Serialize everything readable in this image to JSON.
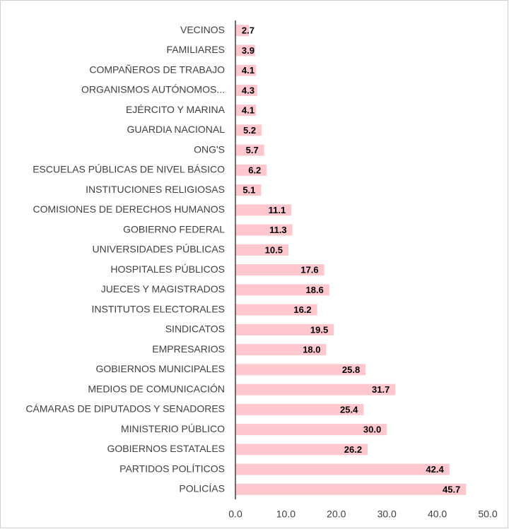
{
  "chart_data": {
    "type": "bar",
    "orientation": "horizontal",
    "categories": [
      "VECINOS",
      "FAMILIARES",
      "COMPAÑEROS DE TRABAJO",
      "ORGANISMOS AUTÓNOMOS...",
      "EJÉRCITO Y MARINA",
      "GUARDIA NACIONAL",
      "ONG'S",
      "ESCUELAS PÚBLICAS DE NIVEL BÁSICO",
      "INSTITUCIONES RELIGIOSAS",
      "COMISIONES DE DERECHOS HUMANOS",
      "GOBIERNO FEDERAL",
      "UNIVERSIDADES PÚBLICAS",
      "HOSPITALES PÚBLICOS",
      "JUECES Y MAGISTRADOS",
      "INSTITUTOS ELECTORALES",
      "SINDICATOS",
      "EMPRESARIOS",
      "GOBIERNOS MUNICIPALES",
      "MEDIOS DE COMUNICACIÓN",
      "CÁMARAS DE DIPUTADOS Y SENADORES",
      "MINISTERIO PÚBLICO",
      "GOBIERNOS ESTATALES",
      "PARTIDOS POLÍTICOS",
      "POLICÍAS"
    ],
    "values": [
      2.7,
      3.9,
      4.1,
      4.3,
      4.1,
      5.2,
      5.7,
      6.2,
      5.1,
      11.1,
      11.3,
      10.5,
      17.6,
      18.6,
      16.2,
      19.5,
      18.0,
      25.8,
      31.7,
      25.4,
      30.0,
      26.2,
      42.4,
      45.7
    ],
    "value_labels": [
      "2.7",
      "3.9",
      "4.1",
      "4.3",
      "4.1",
      "5.2",
      "5.7",
      "6.2",
      "5.1",
      "11.1",
      "11.3",
      "10.5",
      "17.6",
      "18.6",
      "16.2",
      "19.5",
      "18.0",
      "25.8",
      "31.7",
      "25.4",
      "30.0",
      "26.2",
      "42.4",
      "45.7"
    ],
    "color": "#ffc7ce",
    "xlim": [
      0,
      50
    ],
    "xticks": [
      {
        "value": 0,
        "label": "0.0"
      },
      {
        "value": 10,
        "label": "10.0"
      },
      {
        "value": 20,
        "label": "20.0"
      },
      {
        "value": 30,
        "label": "30.0"
      },
      {
        "value": 40,
        "label": "40.0"
      },
      {
        "value": 50,
        "label": "50.0"
      }
    ],
    "grid": false
  }
}
